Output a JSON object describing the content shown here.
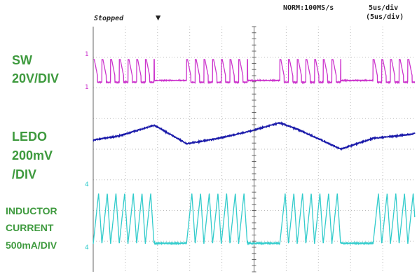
{
  "chart_data": {
    "type": "line",
    "title": "",
    "status": "Stopped",
    "trigger_marker": "▼",
    "acquisition": "NORM:100MS/s",
    "timebase": "5us/div",
    "timebase_secondary": "(5us/div)",
    "grid": true,
    "x_unit": "us",
    "x_range": [
      0,
      50
    ],
    "x_divisions": 10,
    "channels": [
      {
        "name": "SW",
        "scale": "20V/DIV",
        "color": "#cc33cc",
        "marker": "1",
        "high_level_V": 70,
        "low_level_V": 0,
        "burst_on_us": [
          [
            0,
            9.5
          ],
          [
            14.5,
            24
          ],
          [
            29,
            38.5
          ],
          [
            43.5,
            50
          ]
        ],
        "switching_period_us": 1.35
      },
      {
        "name": "LEDO",
        "scale_line1": "200mV",
        "scale_line2": "/DIV",
        "color": "#1a1aaa",
        "x_us": [
          0,
          4,
          9.5,
          14.5,
          19,
          24,
          29,
          32,
          38.5,
          43.5,
          48,
          50
        ],
        "y_mV": [
          0,
          70,
          250,
          -60,
          20,
          140,
          290,
          170,
          -150,
          30,
          80,
          110
        ]
      },
      {
        "name": "INDUCTOR",
        "name_line2": "CURRENT",
        "scale": "500mA/DIV",
        "color": "#33cccc",
        "marker": "4",
        "peak_mA": 1000,
        "baseline_mA": 0,
        "burst_on_us": [
          [
            0,
            9.5
          ],
          [
            14.5,
            24
          ],
          [
            29,
            38.5
          ],
          [
            43.5,
            50
          ]
        ],
        "switching_period_us": 1.35
      }
    ]
  },
  "colors": {
    "grid": "#bbbbbb",
    "axis": "#666666",
    "label": "#3e9a3e"
  }
}
